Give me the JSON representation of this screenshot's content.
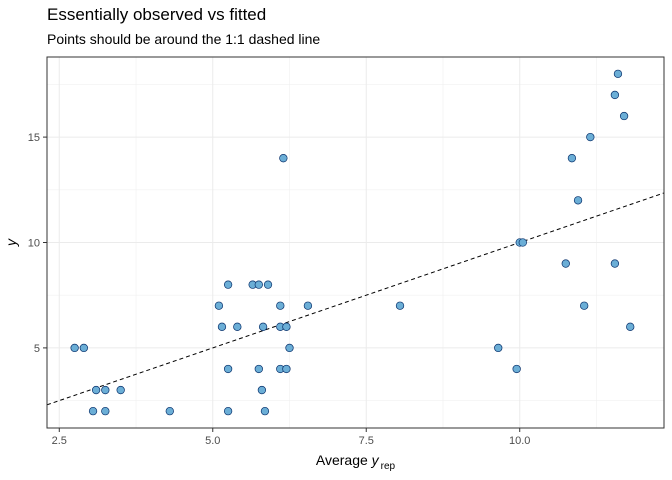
{
  "title": "Essentially observed vs fitted",
  "subtitle": "Points should be around the 1:1 dashed line",
  "chart_data": {
    "type": "scatter",
    "title": "Essentially observed vs fitted",
    "subtitle": "Points should be around the 1:1 dashed line",
    "xlabel_main": "Average ",
    "xlabel_var": "y",
    "xlabel_sub": "rep",
    "ylabel": "y",
    "xlim": [
      2.3,
      12.35
    ],
    "ylim": [
      1.2,
      18.8
    ],
    "x_ticks": [
      2.5,
      5.0,
      7.5,
      10.0
    ],
    "x_tick_labels": [
      "2.5",
      "5.0",
      "7.5",
      "10.0"
    ],
    "y_ticks": [
      5,
      10,
      15
    ],
    "y_tick_labels": [
      "5",
      "10",
      "15"
    ],
    "grid": true,
    "reference_line": {
      "type": "identity",
      "style": "dashed",
      "color": "#000000"
    },
    "point_color": "#6baed6",
    "point_edge_color": "#08306b",
    "points": [
      {
        "x": 2.75,
        "y": 5
      },
      {
        "x": 2.9,
        "y": 5
      },
      {
        "x": 3.05,
        "y": 2
      },
      {
        "x": 3.1,
        "y": 3
      },
      {
        "x": 3.25,
        "y": 2
      },
      {
        "x": 3.25,
        "y": 3
      },
      {
        "x": 3.5,
        "y": 3
      },
      {
        "x": 4.3,
        "y": 2
      },
      {
        "x": 5.1,
        "y": 7
      },
      {
        "x": 5.15,
        "y": 6
      },
      {
        "x": 5.25,
        "y": 8
      },
      {
        "x": 5.25,
        "y": 4
      },
      {
        "x": 5.25,
        "y": 2
      },
      {
        "x": 5.4,
        "y": 6
      },
      {
        "x": 5.65,
        "y": 8
      },
      {
        "x": 5.75,
        "y": 8
      },
      {
        "x": 5.75,
        "y": 4
      },
      {
        "x": 5.8,
        "y": 3
      },
      {
        "x": 5.82,
        "y": 6
      },
      {
        "x": 5.85,
        "y": 2
      },
      {
        "x": 5.9,
        "y": 8
      },
      {
        "x": 6.1,
        "y": 4
      },
      {
        "x": 6.1,
        "y": 7
      },
      {
        "x": 6.1,
        "y": 6
      },
      {
        "x": 6.15,
        "y": 14
      },
      {
        "x": 6.2,
        "y": 6
      },
      {
        "x": 6.2,
        "y": 4
      },
      {
        "x": 6.25,
        "y": 5
      },
      {
        "x": 6.55,
        "y": 7
      },
      {
        "x": 8.05,
        "y": 7
      },
      {
        "x": 9.65,
        "y": 5
      },
      {
        "x": 9.95,
        "y": 4
      },
      {
        "x": 10.0,
        "y": 10
      },
      {
        "x": 10.05,
        "y": 10
      },
      {
        "x": 10.75,
        "y": 9
      },
      {
        "x": 10.85,
        "y": 14
      },
      {
        "x": 10.95,
        "y": 12
      },
      {
        "x": 11.05,
        "y": 7
      },
      {
        "x": 11.15,
        "y": 15
      },
      {
        "x": 11.55,
        "y": 17
      },
      {
        "x": 11.55,
        "y": 9
      },
      {
        "x": 11.6,
        "y": 18
      },
      {
        "x": 11.7,
        "y": 16
      },
      {
        "x": 11.8,
        "y": 6
      }
    ]
  }
}
